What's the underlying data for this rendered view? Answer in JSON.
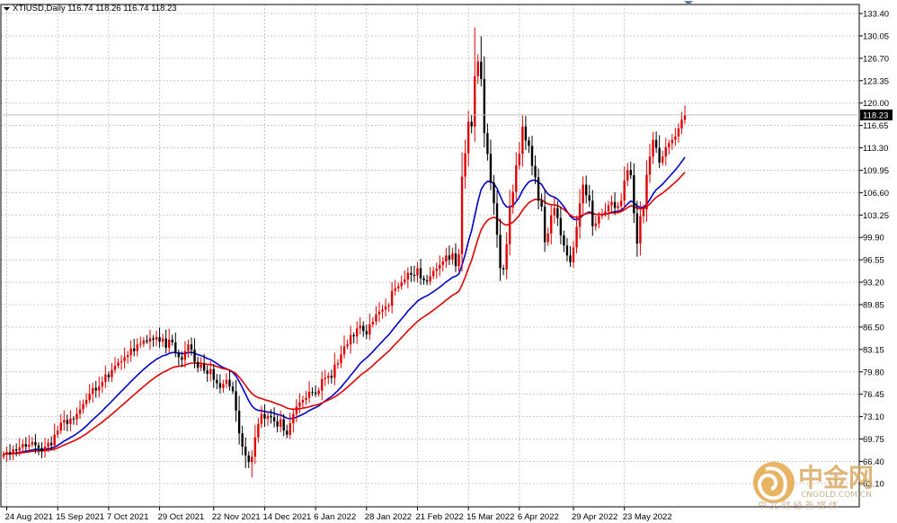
{
  "header": {
    "symbol_line": "XTIUSD,Daily  116.74 118.26 116.74 118.23"
  },
  "watermark": {
    "brand_cn": "中金网",
    "brand_en": "CNGOLD.COM.CN",
    "tagline_cn": "中 文 财 经 新 媒 体"
  },
  "colors": {
    "up_candle": "#e00000",
    "down_candle": "#000000",
    "ma_fast": "#0000c8",
    "ma_slow": "#e00000",
    "grid": "#c8c8c8",
    "price_tag_bg": "#000000",
    "price_tag_text": "#ffffff"
  },
  "chart_data": {
    "type": "candlestick",
    "title": "XTIUSD,Daily",
    "ohlc_last": {
      "open": 116.74,
      "high": 118.26,
      "low": 116.74,
      "close": 118.23
    },
    "current_price_label": "118.23",
    "y_ticks": [
      "133.40",
      "130.05",
      "126.70",
      "123.35",
      "120.00",
      "116.65",
      "113.30",
      "109.95",
      "106.60",
      "103.25",
      "99.90",
      "96.55",
      "93.20",
      "89.85",
      "86.50",
      "83.15",
      "79.80",
      "76.45",
      "73.10",
      "69.75",
      "66.40",
      "63.10"
    ],
    "x_ticks": [
      "24 Aug 2021",
      "15 Sep 2021",
      "7 Oct 2021",
      "29 Oct 2021",
      "22 Nov 2021",
      "14 Dec 2021",
      "6 Jan 2022",
      "28 Jan 2022",
      "21 Feb 2022",
      "15 Mar 2022",
      "6 Apr 2022",
      "29 Apr 2022",
      "23 May 2022"
    ],
    "ylim": [
      62.5,
      134.5
    ],
    "grid": true,
    "closes": [
      67.5,
      67.8,
      67.6,
      68.2,
      68.0,
      68.5,
      69.0,
      68.6,
      68.9,
      69.3,
      68.8,
      68.4,
      67.9,
      68.6,
      69.2,
      68.8,
      70.4,
      71.0,
      72.2,
      72.6,
      72.0,
      72.8,
      72.7,
      73.5,
      74.2,
      75.0,
      75.6,
      76.5,
      77.4,
      77.0,
      77.6,
      78.3,
      79.4,
      79.0,
      80.1,
      80.7,
      81.2,
      81.4,
      82.0,
      82.3,
      83.3,
      82.9,
      83.9,
      84.0,
      84.5,
      84.3,
      84.8,
      84.6,
      85.0,
      84.3,
      84.8,
      83.4,
      84.6,
      84.2,
      82.6,
      82.0,
      81.6,
      82.9,
      83.9,
      83.1,
      81.3,
      80.4,
      80.9,
      80.0,
      79.5,
      80.2,
      78.6,
      78.1,
      77.4,
      78.0,
      78.6,
      77.6,
      76.9,
      74.0,
      70.6,
      68.6,
      67.3,
      66.3,
      67.1,
      70.0,
      72.0,
      73.5,
      72.8,
      73.2,
      73.0,
      72.4,
      71.6,
      72.7,
      71.0,
      70.4,
      72.1,
      73.5,
      74.6,
      75.2,
      75.6,
      75.9,
      76.8,
      76.7,
      76.5,
      77.0,
      78.7,
      78.9,
      79.2,
      78.9,
      80.9,
      81.1,
      82.4,
      83.6,
      83.9,
      85.3,
      85.1,
      86.3,
      86.7,
      85.9,
      85.4,
      86.9,
      87.3,
      88.4,
      88.8,
      89.1,
      89.6,
      89.7,
      91.9,
      92.3,
      92.6,
      93.2,
      93.6,
      94.6,
      94.3,
      94.2,
      95.3,
      93.8,
      93.5,
      93.3,
      94.1,
      94.9,
      95.2,
      95.8,
      96.3,
      97.2,
      96.6,
      97.5,
      95.6,
      97.4,
      109.0,
      112.5,
      117.2,
      116.5,
      124.0,
      126.2,
      123.6,
      115.5,
      112.4,
      108.1,
      105.0,
      100.3,
      95.3,
      95.1,
      98.9,
      104.4,
      106.7,
      110.7,
      112.4,
      116.5,
      114.4,
      113.6,
      110.6,
      108.9,
      105.4,
      104.5,
      99.2,
      100.5,
      103.2,
      104.3,
      102.8,
      100.2,
      98.7,
      97.2,
      96.2,
      98.4,
      101.5,
      105.0,
      107.8,
      106.2,
      105.4,
      101.6,
      102.0,
      103.1,
      103.4,
      103.8,
      104.7,
      105.2,
      104.3,
      104.6,
      105.4,
      108.4,
      110.0,
      109.2,
      103.5,
      99.0,
      103.1,
      104.1,
      109.3,
      112.0,
      114.5,
      113.3,
      111.1,
      112.0,
      113.4,
      114.0,
      114.5,
      115.0,
      116.2,
      117.5,
      118.23
    ],
    "series": [
      {
        "name": "",
        "color": "#0000c8"
      },
      {
        "name": "",
        "color": "#e00000"
      }
    ]
  }
}
